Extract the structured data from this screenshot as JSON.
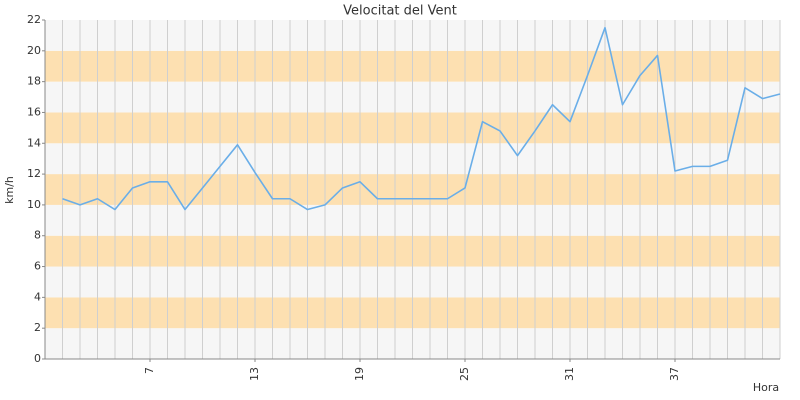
{
  "chart_data": {
    "type": "line",
    "title": "Velocitat del Vent",
    "x_label": "Hora",
    "y_label": "km/h",
    "x": [
      2,
      3,
      4,
      5,
      6,
      7,
      8,
      9,
      10,
      11,
      12,
      13,
      14,
      15,
      16,
      17,
      18,
      19,
      20,
      21,
      22,
      23,
      24,
      25,
      26,
      27,
      28,
      29,
      30,
      31,
      32,
      33,
      34,
      35,
      36,
      37,
      38,
      39,
      40,
      41,
      42,
      43
    ],
    "series": [
      {
        "color": "#6aaee8",
        "values": [
          10.4,
          10.0,
          10.4,
          9.7,
          11.1,
          11.5,
          11.5,
          9.7,
          11.1,
          12.5,
          13.9,
          12.1,
          10.4,
          10.4,
          9.7,
          10.0,
          11.1,
          11.5,
          10.4,
          10.4,
          10.4,
          10.4,
          10.4,
          11.1,
          15.4,
          14.8,
          13.2,
          14.8,
          16.5,
          15.4,
          18.4,
          21.5,
          16.5,
          18.4,
          19.7,
          12.2,
          12.5,
          12.5,
          12.9,
          17.6,
          16.9,
          17.2
        ]
      }
    ],
    "xlim": [
      1,
      43
    ],
    "xticks": [
      7,
      13,
      19,
      25,
      31,
      37
    ],
    "ylim": [
      0,
      22
    ],
    "yticks": [
      0,
      2,
      4,
      6,
      8,
      10,
      12,
      14,
      16,
      18,
      20,
      22
    ],
    "band_colors": [
      "#f6f6f6",
      "#fde0b1"
    ],
    "grid": true
  }
}
